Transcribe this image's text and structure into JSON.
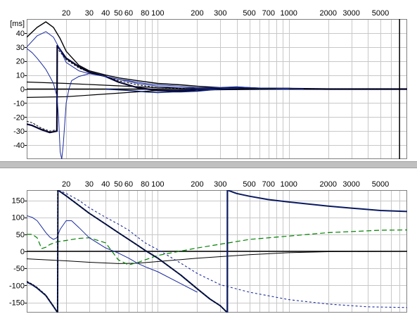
{
  "window": {
    "splitter_color": "#c0c0c0",
    "panel_border_color": "#808080"
  },
  "chart_data": [
    {
      "type": "line",
      "title": "",
      "xlabel": "",
      "ylabel": "[ms]",
      "x_scale": "log",
      "xlim": [
        10,
        8000
      ],
      "ylim": [
        -50,
        50
      ],
      "grid": true,
      "x_tick_labels": [
        {
          "v": 20,
          "t": "20"
        },
        {
          "v": 30,
          "t": "30"
        },
        {
          "v": 40,
          "t": "40"
        },
        {
          "v": 50,
          "t": "50"
        },
        {
          "v": 60,
          "t": "60"
        },
        {
          "v": 80,
          "t": "80"
        },
        {
          "v": 100,
          "t": "100"
        },
        {
          "v": 200,
          "t": "200"
        },
        {
          "v": 300,
          "t": "300"
        },
        {
          "v": 500,
          "t": "500"
        },
        {
          "v": 700,
          "t": "700"
        },
        {
          "v": 1000,
          "t": "1000"
        },
        {
          "v": 2000,
          "t": "2000"
        },
        {
          "v": 3000,
          "t": "3000"
        },
        {
          "v": 5000,
          "t": "5000"
        }
      ],
      "y_ticks": [
        40,
        30,
        20,
        10,
        0,
        -10,
        -20,
        -30,
        -40
      ],
      "vertical_marker_x": 7000,
      "series": [
        {
          "color": "#000000",
          "width": 1.2,
          "dash": "",
          "x": [
            10,
            20,
            100,
            1000,
            8000
          ],
          "y": [
            -6,
            -5.5,
            -1,
            0,
            0
          ]
        },
        {
          "color": "#000000",
          "width": 1.2,
          "dash": "",
          "x": [
            10,
            20,
            100,
            1000,
            8000
          ],
          "y": [
            5,
            4,
            1,
            0,
            0
          ]
        },
        {
          "color": "#000033",
          "width": 2.2,
          "dash": "",
          "x": [
            10,
            11,
            13,
            15,
            17,
            17.1,
            20,
            25,
            30,
            40,
            50,
            70,
            100,
            150,
            200,
            300,
            350,
            500,
            1000,
            2000,
            8000
          ],
          "y": [
            -25,
            -26,
            -29,
            -31,
            -30,
            31,
            22,
            16,
            12,
            9,
            5,
            1,
            -1,
            -1.5,
            -0.5,
            0,
            0.5,
            0.5,
            0.3,
            0,
            0
          ]
        },
        {
          "color": "#000000",
          "width": 1.0,
          "dash": "3,2",
          "x": [
            10,
            11,
            13,
            15,
            17,
            17.1,
            20,
            25,
            30,
            40,
            50,
            70,
            100,
            150,
            200,
            300,
            500,
            1000,
            2000,
            8000
          ],
          "y": [
            -23,
            -24,
            -28,
            -30,
            -29,
            29,
            21,
            15,
            12,
            9,
            6,
            3,
            1,
            0.5,
            0,
            0,
            0,
            0,
            0,
            0
          ]
        },
        {
          "color": "#000000",
          "width": 1.4,
          "dash": "",
          "x": [
            10,
            12,
            14,
            16,
            18,
            20,
            25,
            30,
            40,
            50,
            70,
            100,
            150,
            200,
            300,
            400,
            600,
            1000,
            1300
          ],
          "y": [
            37,
            44,
            48,
            44,
            36,
            27,
            17,
            13,
            10,
            8,
            6,
            4,
            3,
            2,
            1,
            1.5,
            0.5,
            0.5,
            0
          ]
        },
        {
          "color": "#1a2aa0",
          "width": 1.0,
          "dash": "",
          "x": [
            10,
            12,
            14,
            16,
            18,
            20,
            25,
            30,
            40,
            50,
            60,
            80,
            100,
            150,
            200,
            300,
            400,
            700,
            1000,
            1300
          ],
          "y": [
            30,
            38,
            41,
            37,
            28,
            19,
            13,
            11,
            9,
            7,
            6,
            4,
            3,
            2,
            1,
            1,
            1.5,
            0.5,
            0.5,
            0
          ]
        },
        {
          "color": "#1a2aa0",
          "width": 1.0,
          "dash": "",
          "x": [
            10,
            11,
            12,
            13,
            14,
            15,
            16,
            17,
            17.5,
            18,
            18.5,
            19,
            20,
            21,
            22,
            25,
            30,
            40,
            50,
            70,
            100,
            200,
            300,
            500,
            1000
          ],
          "y": [
            29,
            26,
            22,
            18,
            14,
            9,
            4,
            -5,
            -20,
            -45,
            -50,
            -40,
            -10,
            0,
            6,
            9,
            11,
            9,
            7,
            4,
            2,
            0,
            0,
            1,
            0
          ]
        },
        {
          "color": "#0a2070",
          "width": 1.6,
          "dash": "",
          "x": [
            40,
            60,
            80,
            100,
            130,
            150,
            200,
            300,
            350,
            400,
            600,
            800
          ],
          "y": [
            0,
            -1,
            -2,
            -2.5,
            -2,
            -2,
            -1.5,
            0,
            1,
            1,
            0.5,
            0.5
          ]
        }
      ]
    },
    {
      "type": "line",
      "title": "",
      "xlabel": "",
      "ylabel": "",
      "x_scale": "log",
      "xlim": [
        10,
        8000
      ],
      "ylim": [
        -180,
        180
      ],
      "grid": true,
      "x_tick_labels": [
        {
          "v": 20,
          "t": "20"
        },
        {
          "v": 30,
          "t": "30"
        },
        {
          "v": 40,
          "t": "40"
        },
        {
          "v": 50,
          "t": "50"
        },
        {
          "v": 60,
          "t": "60"
        },
        {
          "v": 80,
          "t": "80"
        },
        {
          "v": 100,
          "t": "100"
        },
        {
          "v": 200,
          "t": "200"
        },
        {
          "v": 300,
          "t": "300"
        },
        {
          "v": 500,
          "t": "500"
        },
        {
          "v": 700,
          "t": "700"
        },
        {
          "v": 1000,
          "t": "1000"
        },
        {
          "v": 2000,
          "t": "2000"
        },
        {
          "v": 3000,
          "t": "3000"
        },
        {
          "v": 5000,
          "t": "5000"
        }
      ],
      "y_ticks": [
        150,
        100,
        50,
        0,
        -50,
        -100,
        -150
      ],
      "series": [
        {
          "color": "#000000",
          "width": 1.0,
          "dash": "",
          "x": [
            10,
            20,
            30,
            50,
            70,
            100,
            200,
            500,
            1000,
            2000,
            8000
          ],
          "y": [
            -22,
            -28,
            -32,
            -36,
            -35,
            -30,
            -20,
            -10,
            -4,
            -1,
            0
          ]
        },
        {
          "color": "#008000",
          "width": 1.2,
          "dash": "7,4",
          "x": [
            10,
            11,
            12,
            13,
            14,
            15,
            17,
            20,
            25,
            30,
            40,
            50,
            60,
            70,
            100,
            200,
            500,
            1000,
            2000,
            5000,
            8000
          ],
          "y": [
            50,
            50,
            40,
            8,
            12,
            20,
            28,
            32,
            38,
            40,
            25,
            -25,
            -40,
            -33,
            -12,
            10,
            35,
            45,
            55,
            62,
            63
          ]
        },
        {
          "color": "#1a2aa0",
          "width": 1.0,
          "dash": "",
          "x": [
            10,
            11,
            12,
            13,
            14,
            15,
            16,
            17,
            18,
            20,
            22,
            25,
            30,
            40,
            50,
            60,
            70,
            80,
            100,
            150,
            200
          ],
          "y": [
            105,
            100,
            90,
            72,
            55,
            42,
            35,
            40,
            65,
            90,
            90,
            70,
            40,
            10,
            -5,
            -20,
            -35,
            -45,
            -60,
            -95,
            -120
          ]
        },
        {
          "color": "#0a1a60",
          "width": 2.0,
          "dash": "",
          "x": [
            10,
            11,
            12,
            14,
            16,
            17.2,
            17.3,
            20,
            25,
            30,
            40,
            50,
            60,
            70,
            80,
            100,
            150,
            200,
            250,
            300,
            339,
            340,
            400,
            500,
            700,
            1000,
            2000,
            3000,
            5000,
            8000
          ],
          "y": [
            -90,
            -98,
            -108,
            -130,
            -162,
            -180,
            180,
            163,
            135,
            112,
            80,
            55,
            35,
            18,
            3,
            -20,
            -70,
            -110,
            -140,
            -160,
            -180,
            180,
            170,
            162,
            152,
            145,
            133,
            127,
            120,
            117
          ]
        },
        {
          "color": "#000000",
          "width": 1.0,
          "dash": "3,2",
          "x": [
            10,
            11,
            12,
            14,
            16,
            17.2,
            17.3,
            20,
            25,
            30,
            40,
            50,
            60,
            70,
            80,
            100,
            150,
            200,
            250,
            300,
            339
          ],
          "y": [
            -88,
            -96,
            -106,
            -128,
            -160,
            -180,
            180,
            163,
            135,
            112,
            80,
            55,
            35,
            18,
            3,
            -20,
            -70,
            -110,
            -140,
            -160,
            -180
          ]
        },
        {
          "color": "#1a2aa0",
          "width": 1.1,
          "dash": "3,3",
          "x": [
            17.5,
            20,
            25,
            30,
            40,
            50,
            60,
            70,
            80,
            100,
            150,
            200,
            300,
            500,
            1000,
            2000,
            4000,
            8000
          ],
          "y": [
            180,
            170,
            150,
            128,
            100,
            80,
            62,
            42,
            25,
            5,
            -35,
            -65,
            -98,
            -120,
            -142,
            -155,
            -163,
            -165
          ]
        }
      ],
      "vertical_lines": [
        {
          "x": 17.2,
          "color": "#000000",
          "width": 1.0,
          "dash": "3,2"
        },
        {
          "x": 340,
          "color": "#0a1a60",
          "width": 2.0,
          "dash": ""
        }
      ]
    }
  ]
}
